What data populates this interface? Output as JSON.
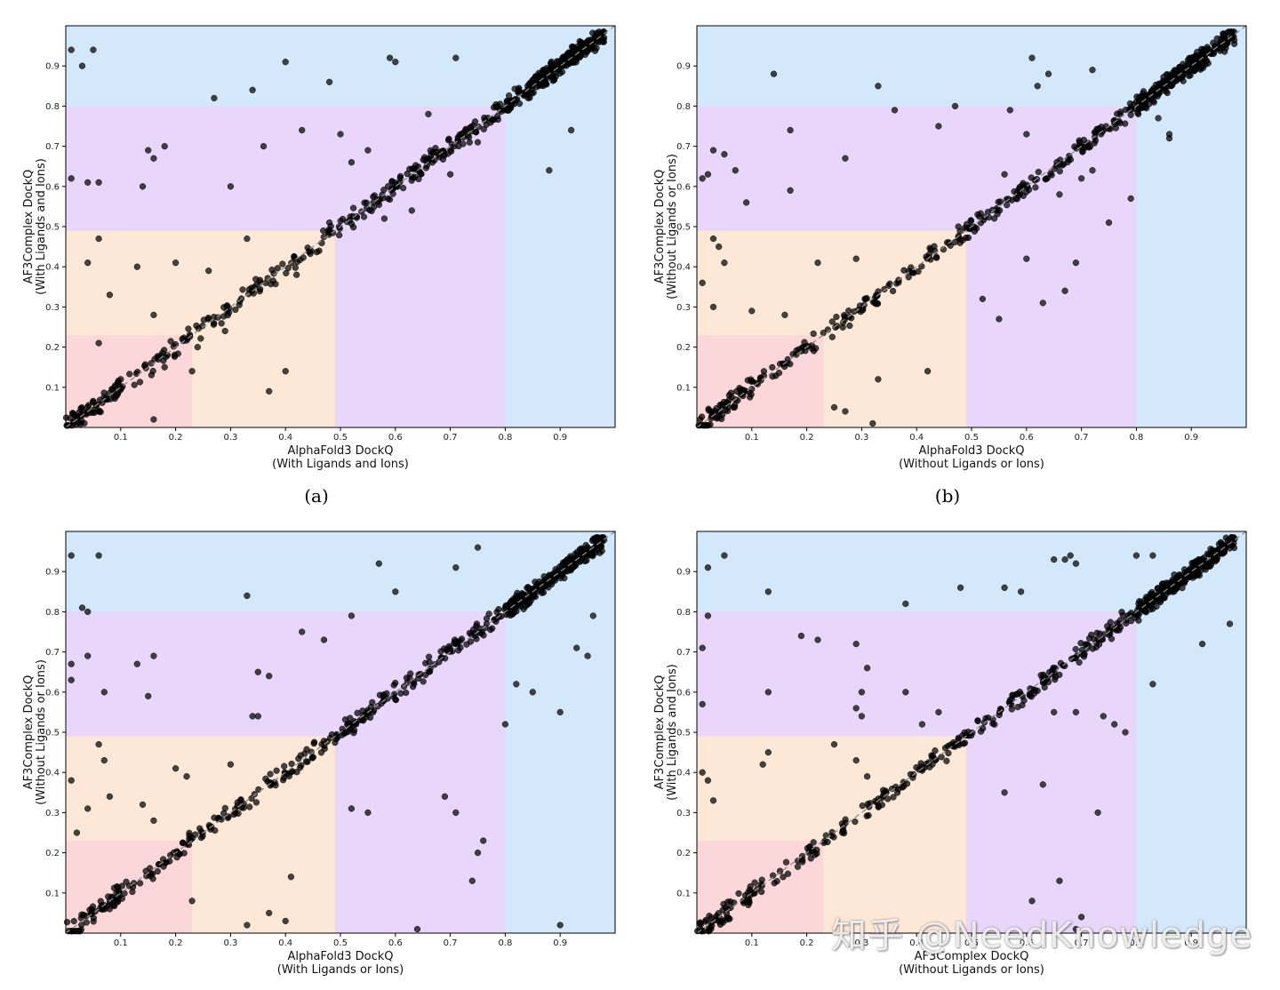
{
  "chart_data": [
    {
      "id": "a",
      "type": "scatter",
      "xlabel": "AlphaFold3 DockQ",
      "xlabel2": "(With Ligands and Ions)",
      "ylabel": "AF3Complex DockQ",
      "ylabel2": "(With Ligands and Ions)",
      "caption": "(a)",
      "xlim": [
        0,
        1
      ],
      "ylim": [
        0,
        1
      ],
      "diagonal": true,
      "xticks": [
        "0.1",
        "0.2",
        "0.3",
        "0.4",
        "0.5",
        "0.6",
        "0.7",
        "0.8",
        "0.9"
      ],
      "yticks": [
        "0.1",
        "0.2",
        "0.3",
        "0.4",
        "0.5",
        "0.6",
        "0.7",
        "0.8",
        "0.9"
      ],
      "seed": 11,
      "outliers": [
        [
          0.01,
          0.94
        ],
        [
          0.05,
          0.94
        ],
        [
          0.03,
          0.9
        ],
        [
          0.06,
          0.61
        ],
        [
          0.04,
          0.61
        ],
        [
          0.01,
          0.62
        ],
        [
          0.15,
          0.69
        ],
        [
          0.16,
          0.67
        ],
        [
          0.18,
          0.7
        ],
        [
          0.14,
          0.6
        ],
        [
          0.27,
          0.82
        ],
        [
          0.34,
          0.84
        ],
        [
          0.4,
          0.91
        ],
        [
          0.48,
          0.86
        ],
        [
          0.59,
          0.92
        ],
        [
          0.71,
          0.92
        ],
        [
          0.6,
          0.91
        ],
        [
          0.3,
          0.6
        ],
        [
          0.36,
          0.7
        ],
        [
          0.43,
          0.74
        ],
        [
          0.04,
          0.41
        ],
        [
          0.06,
          0.47
        ],
        [
          0.08,
          0.33
        ],
        [
          0.13,
          0.4
        ],
        [
          0.2,
          0.41
        ],
        [
          0.33,
          0.47
        ],
        [
          0.16,
          0.28
        ],
        [
          0.37,
          0.09
        ],
        [
          0.4,
          0.14
        ],
        [
          0.16,
          0.02
        ],
        [
          0.06,
          0.21
        ],
        [
          0.23,
          0.14
        ],
        [
          0.88,
          0.64
        ],
        [
          0.92,
          0.74
        ],
        [
          0.5,
          0.73
        ],
        [
          0.55,
          0.69
        ],
        [
          0.58,
          0.52
        ],
        [
          0.63,
          0.54
        ],
        [
          0.7,
          0.63
        ],
        [
          0.66,
          0.78
        ],
        [
          0.75,
          0.71
        ],
        [
          0.52,
          0.66
        ],
        [
          0.48,
          0.51
        ],
        [
          0.42,
          0.38
        ],
        [
          0.26,
          0.39
        ],
        [
          0.29,
          0.24
        ],
        [
          0.24,
          0.2
        ],
        [
          0.1,
          0.12
        ],
        [
          0.18,
          0.15
        ]
      ]
    },
    {
      "id": "b",
      "type": "scatter",
      "xlabel": "AlphaFold3 DockQ",
      "xlabel2": "(Without Ligands or Ions)",
      "ylabel": "AF3Complex DockQ",
      "ylabel2": "(Without Ligands or Ions)",
      "caption": "(b)",
      "xlim": [
        0,
        1
      ],
      "ylim": [
        0,
        1
      ],
      "diagonal": true,
      "xticks": [
        "0.1",
        "0.2",
        "0.3",
        "0.4",
        "0.5",
        "0.6",
        "0.7",
        "0.8",
        "0.9"
      ],
      "yticks": [
        "0.1",
        "0.2",
        "0.3",
        "0.4",
        "0.5",
        "0.6",
        "0.7",
        "0.8",
        "0.9"
      ],
      "seed": 23,
      "outliers": [
        [
          0.14,
          0.88
        ],
        [
          0.33,
          0.85
        ],
        [
          0.01,
          0.62
        ],
        [
          0.02,
          0.63
        ],
        [
          0.03,
          0.69
        ],
        [
          0.05,
          0.68
        ],
        [
          0.07,
          0.64
        ],
        [
          0.09,
          0.56
        ],
        [
          0.17,
          0.74
        ],
        [
          0.17,
          0.59
        ],
        [
          0.27,
          0.67
        ],
        [
          0.36,
          0.79
        ],
        [
          0.44,
          0.75
        ],
        [
          0.47,
          0.8
        ],
        [
          0.57,
          0.79
        ],
        [
          0.61,
          0.92
        ],
        [
          0.62,
          0.85
        ],
        [
          0.64,
          0.88
        ],
        [
          0.72,
          0.89
        ],
        [
          0.03,
          0.47
        ],
        [
          0.04,
          0.45
        ],
        [
          0.05,
          0.41
        ],
        [
          0.03,
          0.3
        ],
        [
          0.1,
          0.29
        ],
        [
          0.16,
          0.28
        ],
        [
          0.22,
          0.41
        ],
        [
          0.29,
          0.42
        ],
        [
          0.01,
          0.36
        ],
        [
          0.42,
          0.14
        ],
        [
          0.33,
          0.12
        ],
        [
          0.25,
          0.05
        ],
        [
          0.27,
          0.04
        ],
        [
          0.32,
          0.01
        ],
        [
          0.52,
          0.32
        ],
        [
          0.55,
          0.27
        ],
        [
          0.6,
          0.42
        ],
        [
          0.63,
          0.31
        ],
        [
          0.67,
          0.34
        ],
        [
          0.69,
          0.41
        ],
        [
          0.75,
          0.51
        ],
        [
          0.79,
          0.57
        ],
        [
          0.86,
          0.73
        ],
        [
          0.86,
          0.72
        ],
        [
          0.84,
          0.77
        ],
        [
          0.56,
          0.63
        ],
        [
          0.66,
          0.58
        ],
        [
          0.6,
          0.73
        ],
        [
          0.7,
          0.62
        ],
        [
          0.72,
          0.64
        ]
      ]
    },
    {
      "id": "c",
      "type": "scatter",
      "xlabel": "AlphaFold3 DockQ",
      "xlabel2": "(With Ligands or Ions)",
      "ylabel": "AF3Complex DockQ",
      "ylabel2": "(Without Ligands or Ions)",
      "caption": "",
      "xlim": [
        0,
        1
      ],
      "ylim": [
        0,
        1
      ],
      "diagonal": true,
      "xticks": [
        "0.1",
        "0.2",
        "0.3",
        "0.4",
        "0.5",
        "0.6",
        "0.7",
        "0.8",
        "0.9"
      ],
      "yticks": [
        "0.1",
        "0.2",
        "0.3",
        "0.4",
        "0.5",
        "0.6",
        "0.7",
        "0.8",
        "0.9"
      ],
      "seed": 37,
      "outliers": [
        [
          0.01,
          0.94
        ],
        [
          0.06,
          0.94
        ],
        [
          0.03,
          0.81
        ],
        [
          0.04,
          0.8
        ],
        [
          0.01,
          0.67
        ],
        [
          0.04,
          0.69
        ],
        [
          0.01,
          0.63
        ],
        [
          0.07,
          0.6
        ],
        [
          0.13,
          0.67
        ],
        [
          0.16,
          0.69
        ],
        [
          0.15,
          0.59
        ],
        [
          0.33,
          0.84
        ],
        [
          0.35,
          0.65
        ],
        [
          0.37,
          0.64
        ],
        [
          0.43,
          0.75
        ],
        [
          0.47,
          0.73
        ],
        [
          0.52,
          0.79
        ],
        [
          0.57,
          0.92
        ],
        [
          0.6,
          0.85
        ],
        [
          0.71,
          0.91
        ],
        [
          0.75,
          0.96
        ],
        [
          0.06,
          0.47
        ],
        [
          0.07,
          0.43
        ],
        [
          0.08,
          0.34
        ],
        [
          0.04,
          0.31
        ],
        [
          0.01,
          0.38
        ],
        [
          0.02,
          0.25
        ],
        [
          0.14,
          0.32
        ],
        [
          0.16,
          0.28
        ],
        [
          0.2,
          0.41
        ],
        [
          0.22,
          0.39
        ],
        [
          0.3,
          0.42
        ],
        [
          0.34,
          0.54
        ],
        [
          0.35,
          0.54
        ],
        [
          0.23,
          0.08
        ],
        [
          0.33,
          0.02
        ],
        [
          0.4,
          0.03
        ],
        [
          0.41,
          0.14
        ],
        [
          0.37,
          0.05
        ],
        [
          0.52,
          0.31
        ],
        [
          0.55,
          0.3
        ],
        [
          0.64,
          0.01
        ],
        [
          0.69,
          0.34
        ],
        [
          0.71,
          0.3
        ],
        [
          0.74,
          0.13
        ],
        [
          0.75,
          0.2
        ],
        [
          0.76,
          0.23
        ],
        [
          0.9,
          0.02
        ],
        [
          0.9,
          0.55
        ],
        [
          0.82,
          0.62
        ],
        [
          0.85,
          0.6
        ],
        [
          0.93,
          0.71
        ],
        [
          0.95,
          0.69
        ],
        [
          0.96,
          0.79
        ],
        [
          0.8,
          0.52
        ]
      ]
    },
    {
      "id": "d",
      "type": "scatter",
      "xlabel": "AF3Complex DockQ",
      "xlabel2": "(Without Ligands or Ions)",
      "ylabel": "AF3Complex DockQ",
      "ylabel2": "(With Ligands and Ions)",
      "caption": "",
      "xlim": [
        0,
        1
      ],
      "ylim": [
        0,
        1
      ],
      "diagonal": true,
      "xticks": [
        "0.1",
        "0.2",
        "0.3",
        "0.4",
        "0.5",
        "0.6",
        "0.7",
        "0.8",
        "0.9"
      ],
      "yticks": [
        "0.1",
        "0.2",
        "0.3",
        "0.4",
        "0.5",
        "0.6",
        "0.7",
        "0.8",
        "0.9"
      ],
      "seed": 53,
      "outliers": [
        [
          0.02,
          0.91
        ],
        [
          0.05,
          0.94
        ],
        [
          0.13,
          0.85
        ],
        [
          0.38,
          0.82
        ],
        [
          0.48,
          0.86
        ],
        [
          0.56,
          0.86
        ],
        [
          0.59,
          0.85
        ],
        [
          0.65,
          0.93
        ],
        [
          0.67,
          0.93
        ],
        [
          0.68,
          0.94
        ],
        [
          0.69,
          0.92
        ],
        [
          0.8,
          0.94
        ],
        [
          0.83,
          0.94
        ],
        [
          0.02,
          0.79
        ],
        [
          0.01,
          0.71
        ],
        [
          0.01,
          0.57
        ],
        [
          0.13,
          0.6
        ],
        [
          0.19,
          0.74
        ],
        [
          0.22,
          0.73
        ],
        [
          0.29,
          0.72
        ],
        [
          0.31,
          0.66
        ],
        [
          0.25,
          0.47
        ],
        [
          0.29,
          0.56
        ],
        [
          0.3,
          0.6
        ],
        [
          0.3,
          0.54
        ],
        [
          0.38,
          0.6
        ],
        [
          0.41,
          0.52
        ],
        [
          0.44,
          0.55
        ],
        [
          0.01,
          0.4
        ],
        [
          0.02,
          0.38
        ],
        [
          0.03,
          0.33
        ],
        [
          0.13,
          0.45
        ],
        [
          0.12,
          0.42
        ],
        [
          0.29,
          0.43
        ],
        [
          0.31,
          0.39
        ],
        [
          0.56,
          0.35
        ],
        [
          0.63,
          0.37
        ],
        [
          0.61,
          0.08
        ],
        [
          0.66,
          0.13
        ],
        [
          0.7,
          0.04
        ],
        [
          0.69,
          0.01
        ],
        [
          0.76,
          0.52
        ],
        [
          0.78,
          0.5
        ],
        [
          0.73,
          0.3
        ],
        [
          0.69,
          0.55
        ],
        [
          0.65,
          0.55
        ],
        [
          0.97,
          0.77
        ],
        [
          0.92,
          0.72
        ],
        [
          0.83,
          0.62
        ],
        [
          0.74,
          0.54
        ]
      ]
    }
  ]
}
